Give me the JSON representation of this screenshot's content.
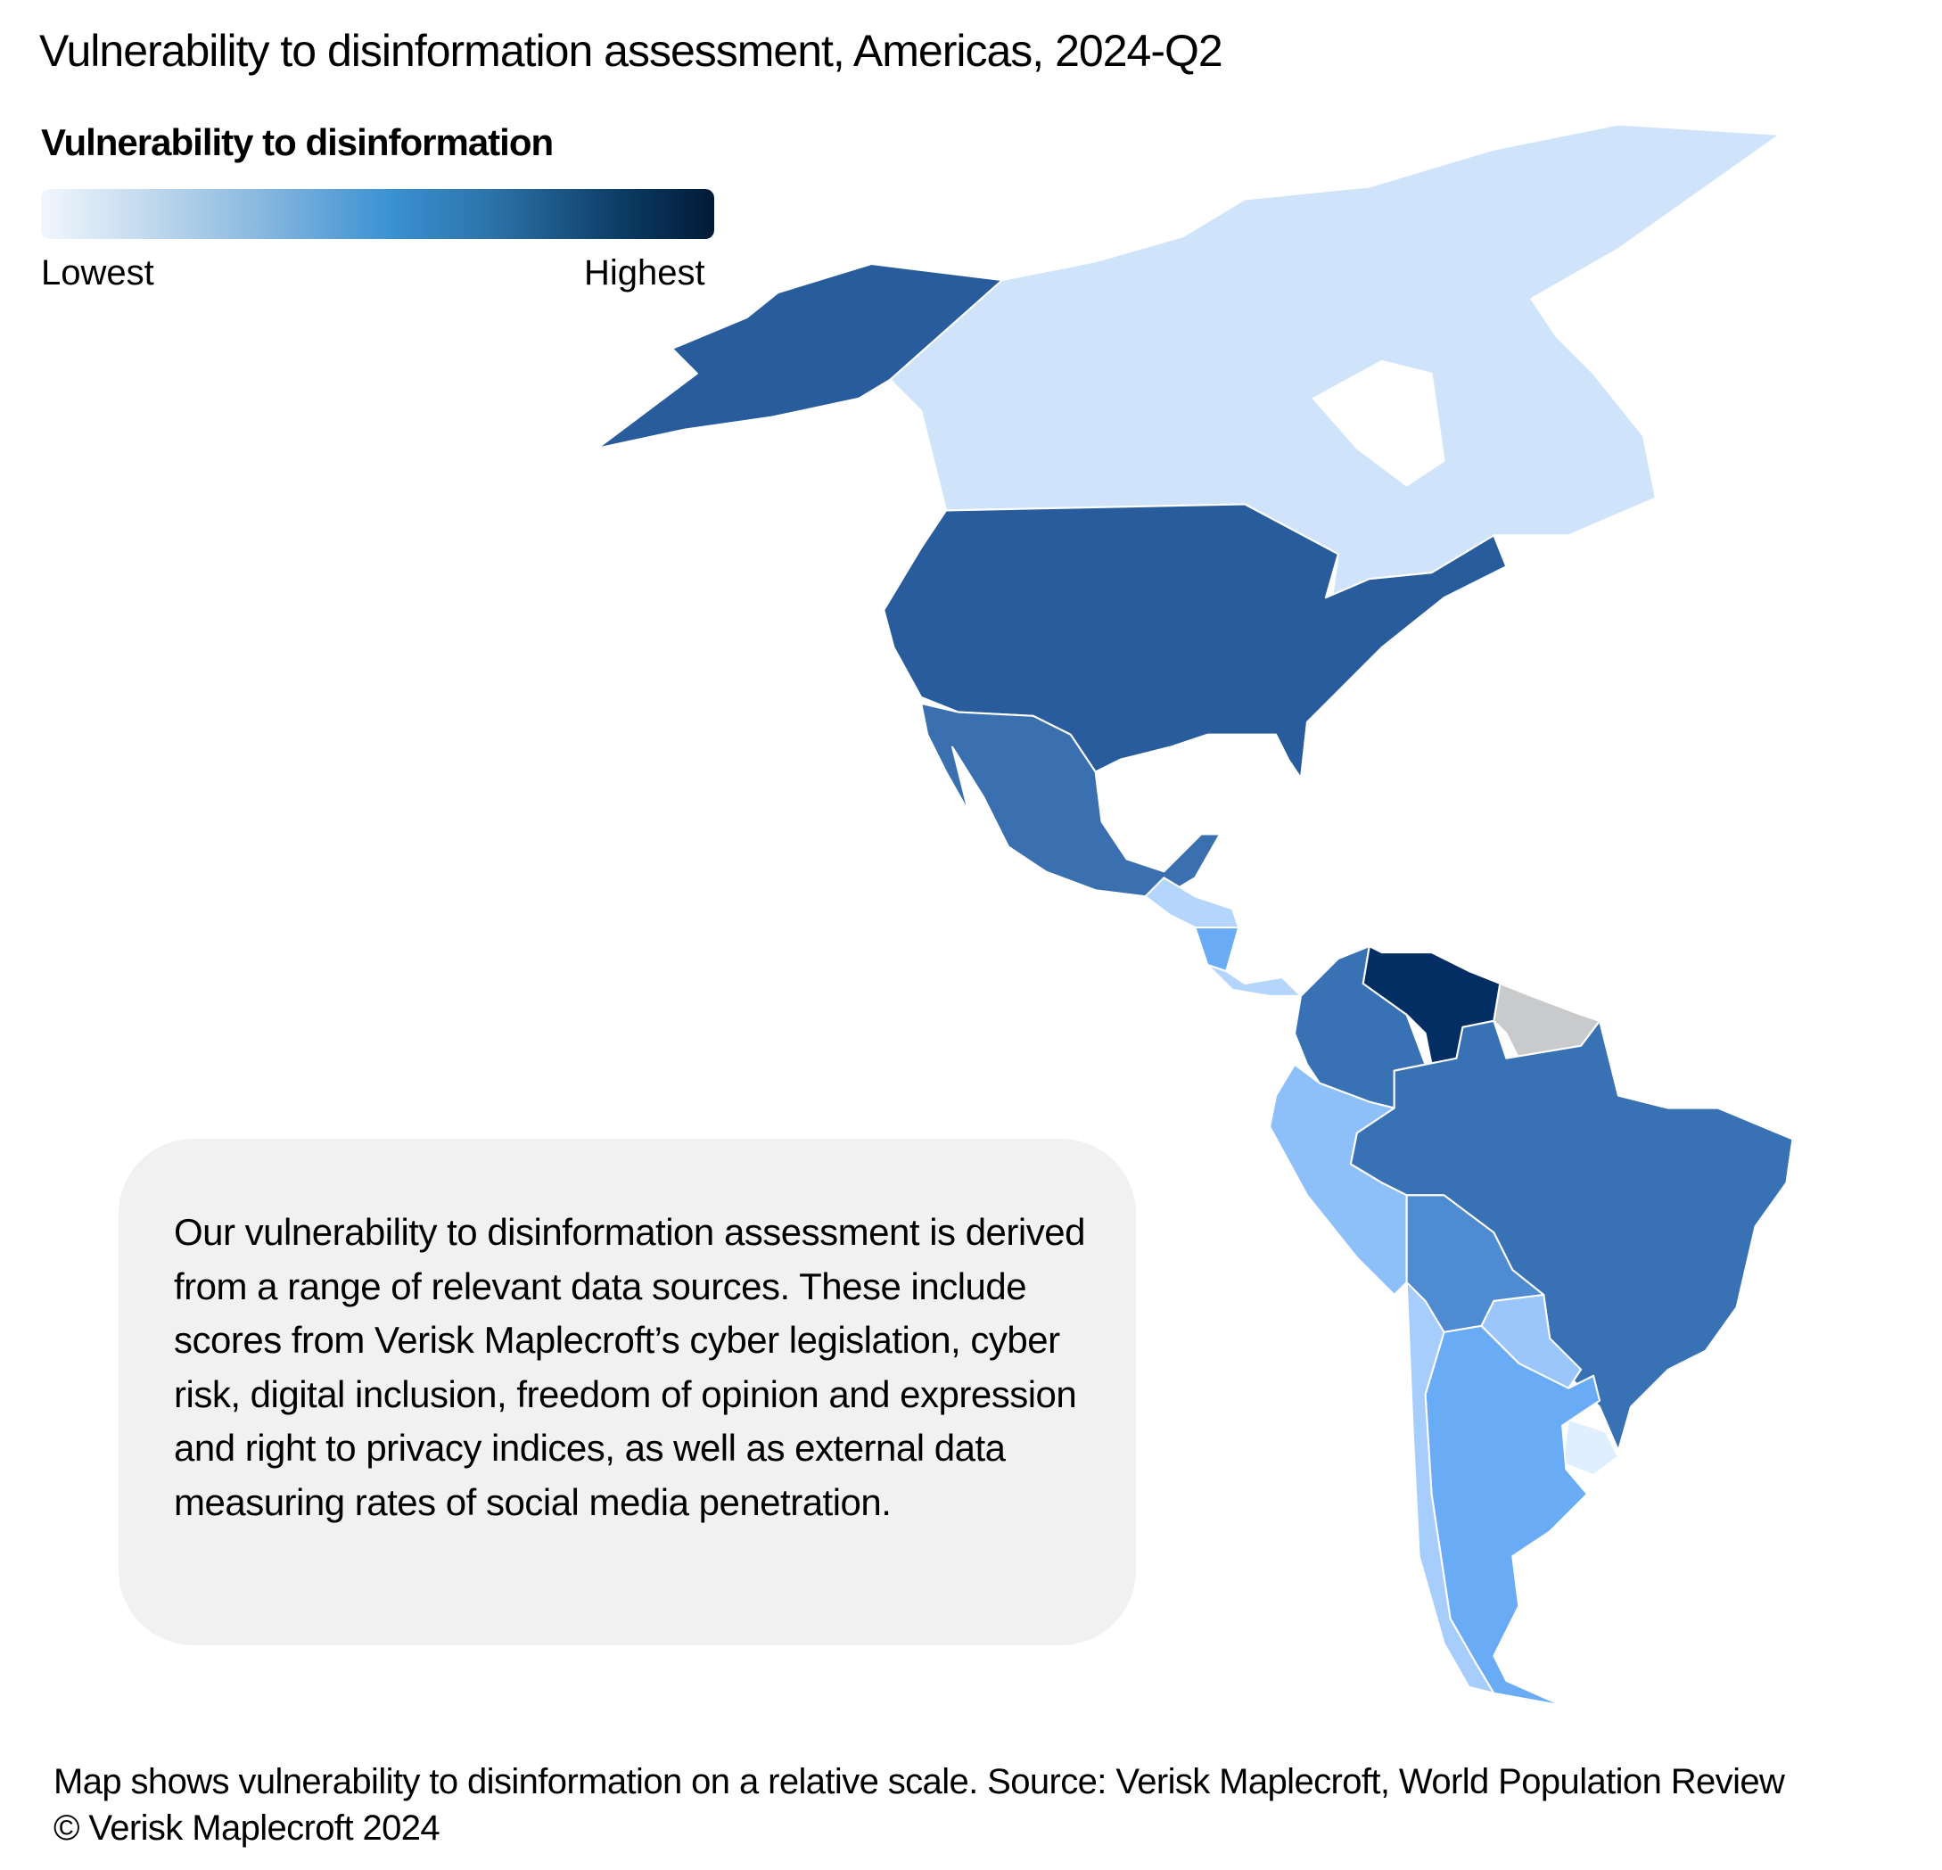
{
  "title": "Vulnerability to disinformation assessment, Americas, 2024-Q2",
  "legend": {
    "title": "Vulnerability to disinformation",
    "low_label": "Lowest",
    "high_label": "Highest",
    "gradient_colors": [
      "#f2f7fd",
      "#8bb9e0",
      "#3a91d2",
      "#2a70a5",
      "#011a36"
    ]
  },
  "map": {
    "no_data_color": "#c9cacc",
    "region_colors": {
      "canada": "#cfe4fb",
      "alaska": "#285c9c",
      "usa": "#285c9c",
      "mexico": "#3a6fb0",
      "guatemala_honduras": "#b5d6fc",
      "nicaragua": "#6aabf6",
      "costa_rica_panama": "#b5d6fc",
      "colombia": "#3871b4",
      "venezuela": "#032e63",
      "guianas": "#c9cacc",
      "brazil": "#3871b4",
      "ecuador_peru": "#8dbff8",
      "bolivia": "#4f8bd1",
      "paraguay": "#9ac6fb",
      "uruguay": "#e0effd",
      "argentina": "#6aabf6",
      "chile": "#a6cdfb"
    }
  },
  "info_box": {
    "text": "Our vulnerability to disinformation assessment is derived from a range of relevant data sources. These include scores from Verisk Maplecroft’s cyber legislation, cyber risk, digital inclusion, freedom of opinion and expression and right to privacy indices, as well as external data measuring rates of social media penetration."
  },
  "footer": {
    "source": "Map shows vulnerability to disinformation on a relative scale. Source: Verisk Maplecroft, World Population Review",
    "copyright": "© Verisk Maplecroft 2024"
  }
}
